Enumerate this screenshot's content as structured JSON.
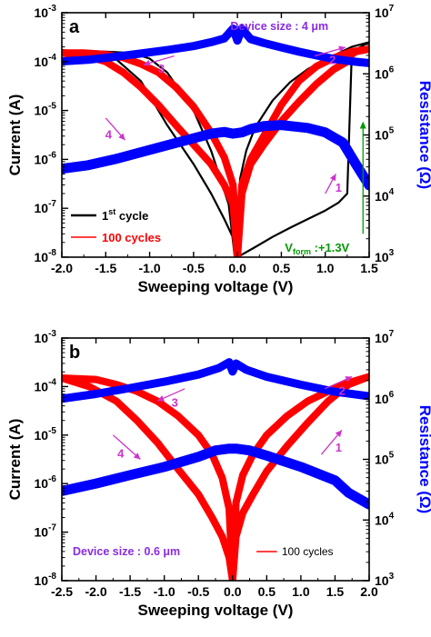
{
  "colors": {
    "current": "#ff0000",
    "first_cycle": "#000000",
    "resistance": "#0000ff",
    "annotation": "#cc33cc",
    "device_label": "#8a2be2",
    "forming": "#009900"
  },
  "chart_data": [
    {
      "type": "line",
      "panel_label": "a",
      "xlabel": "Sweeping voltage (V)",
      "ylabel": "Current (A)",
      "y2label": "Resistance (Ω)",
      "xlim": [
        -2.0,
        1.5
      ],
      "ylim": [
        1e-08,
        0.001
      ],
      "y2lim": [
        1000,
        10000000
      ],
      "yscale": "log",
      "y2scale": "log",
      "x_ticks": [
        "-2.0",
        "-1.5",
        "-1.0",
        "-0.5",
        "0.0",
        "0.5",
        "1.0",
        "1.5"
      ],
      "y_ticks": [
        {
          "base": "10",
          "exp": "-3"
        },
        {
          "base": "10",
          "exp": "-4"
        },
        {
          "base": "10",
          "exp": "-5"
        },
        {
          "base": "10",
          "exp": "-6"
        },
        {
          "base": "10",
          "exp": "-7"
        },
        {
          "base": "10",
          "exp": "-8"
        }
      ],
      "y2_ticks": [
        {
          "base": "10",
          "exp": "7"
        },
        {
          "base": "10",
          "exp": "6"
        },
        {
          "base": "10",
          "exp": "5"
        },
        {
          "base": "10",
          "exp": "4"
        },
        {
          "base": "10",
          "exp": "3"
        }
      ],
      "device_size": "Device size : 4 μm",
      "legend": {
        "first_cycle": {
          "main": "1",
          "sup": "st",
          "rest": " cycle"
        },
        "hundred": "100 cycles"
      },
      "forming": {
        "prefix": "V",
        "sub": "form",
        "rest": " :+1.3V",
        "voltage": 1.3
      },
      "arrows": [
        {
          "label": "1",
          "x": 1.0,
          "y": 2e-07,
          "dx": 0.12,
          "dy_dec": 0.4
        },
        {
          "label": "2",
          "x": 0.88,
          "y": 0.00013,
          "dx": 0.35,
          "dy_dec": 0.18
        },
        {
          "label": "3",
          "x": -0.72,
          "y": 0.00013,
          "dx": -0.35,
          "dy_dec": -0.18
        },
        {
          "label": "4",
          "x": -1.5,
          "y": 7e-06,
          "dx": 0.22,
          "dy_dec": -0.45
        }
      ],
      "series": [
        {
          "name": "1st cycle",
          "role": "current",
          "color_key": "first_cycle",
          "width": 2.2,
          "x": [
            0.0,
            0.2,
            0.4,
            0.6,
            0.8,
            1.0,
            1.15,
            1.25,
            1.3,
            1.38,
            1.5,
            1.3,
            1.0,
            0.8,
            0.6,
            0.4,
            0.2,
            0.1,
            0.03,
            0.0,
            -0.03,
            -0.1,
            -0.3,
            -0.5,
            -0.8,
            -1.0,
            -1.2,
            -1.5,
            -2.0,
            -1.7,
            -1.4,
            -1.1,
            -0.8,
            -0.5,
            -0.3,
            -0.15,
            -0.05,
            0.0
          ],
          "y": [
            1e-08,
            1.6e-08,
            2.6e-08,
            4e-08,
            6e-08,
            9e-08,
            1.3e-07,
            2e-07,
            0.00012,
            0.00019,
            0.00025,
            0.0002,
            0.00011,
            7e-05,
            3.8e-05,
            1.6e-05,
            4.5e-06,
            1.5e-06,
            4e-07,
            1e-08,
            1e-08,
            1.2e-07,
            1.5e-06,
            1e-05,
            6e-05,
            0.000115,
            0.00015,
            0.00016,
            0.00017,
            0.00016,
            0.00012,
            4e-05,
            5e-06,
            8e-07,
            2e-07,
            6e-08,
            2.5e-08,
            1e-08
          ]
        },
        {
          "name": "100 cycles",
          "role": "current",
          "color_key": "current",
          "width": 8,
          "x": [
            0.0,
            0.05,
            0.15,
            0.3,
            0.5,
            0.7,
            0.9,
            1.1,
            1.25,
            1.3,
            1.35,
            1.5,
            1.3,
            1.1,
            0.9,
            0.7,
            0.5,
            0.3,
            0.15,
            0.05,
            0.0,
            -0.05,
            -0.15,
            -0.3,
            -0.5,
            -0.7,
            -0.9,
            -1.1,
            -1.3,
            -1.5,
            -1.75,
            -2.0,
            -1.75,
            -1.5,
            -1.3,
            -1.1,
            -0.9,
            -0.7,
            -0.5,
            -0.3,
            -0.15,
            -0.05,
            0.0
          ],
          "y": [
            1e-08,
            2e-07,
            8e-07,
            2e-06,
            6e-06,
            1.5e-05,
            3.5e-05,
            7e-05,
            0.0001,
            0.00014,
            0.00016,
            0.00018,
            0.00016,
            0.00012,
            8e-05,
            4e-05,
            1.3e-05,
            3e-06,
            1e-06,
            3e-07,
            1e-08,
            3e-07,
            1.1e-06,
            3.5e-06,
            1.2e-05,
            3e-05,
            6e-05,
            9e-05,
            0.00012,
            0.00014,
            0.00015,
            0.00015,
            0.000135,
            0.0001,
            6e-05,
            3e-05,
            1.3e-05,
            5e-06,
            2e-06,
            8e-07,
            3e-07,
            1.2e-07,
            1e-08
          ]
        },
        {
          "name": "Resistance HRS",
          "role": "resistance",
          "color_key": "resistance",
          "width": 11,
          "x": [
            -2.0,
            -1.7,
            -1.4,
            -1.1,
            -0.8,
            -0.5,
            -0.3,
            -0.15,
            -0.05,
            0.05,
            0.15,
            0.3,
            0.5,
            0.8,
            1.0,
            1.2,
            1.35,
            1.5
          ],
          "y": [
            28000,
            32000,
            40000,
            52000,
            68000,
            88000,
            105000,
            112000,
            105000,
            110000,
            125000,
            140000,
            145000,
            130000,
            110000,
            75000,
            33000,
            15000
          ]
        },
        {
          "name": "Resistance LRS",
          "role": "resistance",
          "color_key": "resistance",
          "width": 9,
          "x": [
            -2.0,
            -1.7,
            -1.4,
            -1.1,
            -0.8,
            -0.5,
            -0.3,
            -0.15,
            -0.05,
            0.0,
            0.05,
            0.15,
            0.3,
            0.5,
            0.7,
            0.9,
            1.1,
            1.3,
            1.5
          ],
          "y": [
            1600000,
            1700000,
            1900000,
            2150000,
            2450000,
            2850000,
            3300000,
            3800000,
            5500000,
            3500000,
            5500000,
            3700000,
            3200000,
            2700000,
            2300000,
            2000000,
            1750000,
            1600000,
            1500000
          ]
        }
      ]
    },
    {
      "type": "line",
      "panel_label": "b",
      "xlabel": "Sweeping voltage (V)",
      "ylabel": "Current (A)",
      "y2label": "Resistance (Ω)",
      "xlim": [
        -2.5,
        2.0
      ],
      "ylim": [
        1e-08,
        0.001
      ],
      "y2lim": [
        1000,
        10000000
      ],
      "yscale": "log",
      "y2scale": "log",
      "x_ticks": [
        "-2.5",
        "-2.0",
        "-1.5",
        "-1.0",
        "-0.5",
        "0.0",
        "0.5",
        "1.0",
        "1.5",
        "2.0"
      ],
      "y_ticks": [
        {
          "base": "10",
          "exp": "-3"
        },
        {
          "base": "10",
          "exp": "-4"
        },
        {
          "base": "10",
          "exp": "-5"
        },
        {
          "base": "10",
          "exp": "-6"
        },
        {
          "base": "10",
          "exp": "-7"
        },
        {
          "base": "10",
          "exp": "-8"
        }
      ],
      "y2_ticks": [
        {
          "base": "10",
          "exp": "7"
        },
        {
          "base": "10",
          "exp": "6"
        },
        {
          "base": "10",
          "exp": "5"
        },
        {
          "base": "10",
          "exp": "4"
        },
        {
          "base": "10",
          "exp": "3"
        }
      ],
      "device_size": "Device size : 0.6 μm",
      "legend": {
        "hundred": "100 cycles"
      },
      "arrows": [
        {
          "label": "1",
          "x": 1.3,
          "y": 4e-06,
          "dx": 0.3,
          "dy_dec": 0.5
        },
        {
          "label": "2",
          "x": 1.35,
          "y": 9e-05,
          "dx": 0.4,
          "dy_dec": 0.25
        },
        {
          "label": "3",
          "x": -0.7,
          "y": 9e-05,
          "dx": -0.4,
          "dy_dec": -0.25
        },
        {
          "label": "4",
          "x": -1.75,
          "y": 1e-05,
          "dx": 0.4,
          "dy_dec": -0.5
        }
      ],
      "series": [
        {
          "name": "100 cycles",
          "role": "current",
          "color_key": "current",
          "width": 8,
          "x": [
            0.0,
            0.05,
            0.15,
            0.3,
            0.5,
            0.8,
            1.1,
            1.4,
            1.7,
            2.0,
            1.7,
            1.4,
            1.1,
            0.8,
            0.5,
            0.3,
            0.15,
            0.05,
            0.0,
            -0.05,
            -0.15,
            -0.3,
            -0.5,
            -0.8,
            -1.1,
            -1.4,
            -1.7,
            -2.0,
            -2.5,
            -2.1,
            -1.7,
            -1.4,
            -1.1,
            -0.8,
            -0.5,
            -0.3,
            -0.15,
            -0.05,
            0.0
          ],
          "y": [
            1e-08,
            4e-07,
            1.5e-06,
            4e-06,
            1e-05,
            2.5e-05,
            5e-05,
            8e-05,
            0.00012,
            0.00016,
            0.00011,
            5e-05,
            1.8e-05,
            6e-06,
            1.8e-06,
            6e-07,
            2.5e-07,
            8e-08,
            1e-08,
            3e-07,
            1.3e-06,
            4e-06,
            1e-05,
            2.5e-05,
            5e-05,
            8e-05,
            0.00011,
            0.00014,
            0.00015,
            0.0001,
            5e-05,
            2e-05,
            7e-06,
            2e-06,
            6e-07,
            2e-07,
            8e-08,
            3e-08,
            1e-08
          ]
        },
        {
          "name": "Resistance HRS",
          "role": "resistance",
          "color_key": "resistance",
          "width": 11,
          "x": [
            -2.5,
            -2.0,
            -1.5,
            -1.0,
            -0.5,
            -0.25,
            -0.05,
            0.05,
            0.25,
            0.5,
            1.0,
            1.5,
            1.7,
            2.0
          ],
          "y": [
            30000,
            40000,
            55000,
            75000,
            110000,
            140000,
            150000,
            150000,
            140000,
            115000,
            75000,
            45000,
            28000,
            18000
          ]
        },
        {
          "name": "Resistance LRS",
          "role": "resistance",
          "color_key": "resistance",
          "width": 9,
          "x": [
            -2.5,
            -2.0,
            -1.5,
            -1.0,
            -0.5,
            -0.2,
            -0.05,
            0.0,
            0.05,
            0.2,
            0.5,
            1.0,
            1.5,
            2.0
          ],
          "y": [
            1000000,
            1200000,
            1500000,
            1900000,
            2500000,
            3200000,
            4000000,
            2800000,
            3800000,
            3000000,
            2300000,
            1700000,
            1300000,
            1100000
          ]
        }
      ]
    }
  ]
}
